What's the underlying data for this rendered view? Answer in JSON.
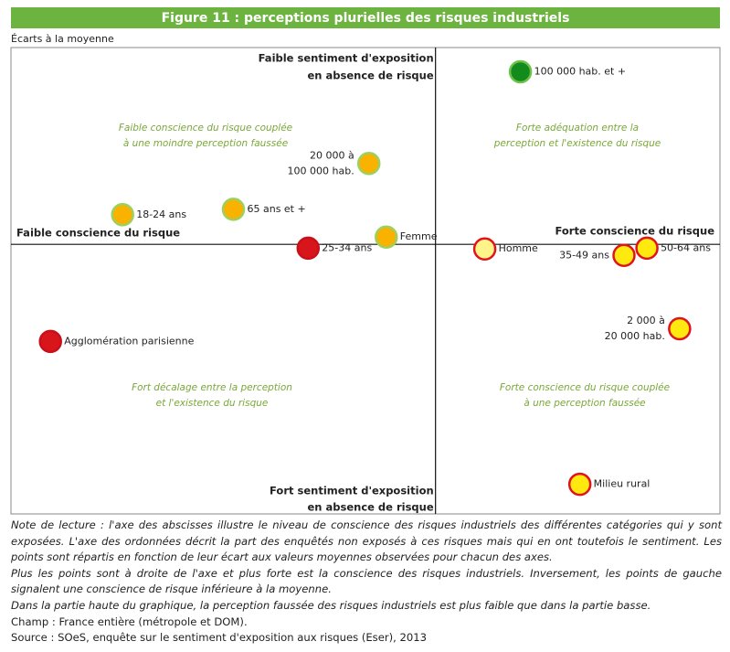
{
  "chart_data": {
    "type": "scatter",
    "title": "Figure 11 : perceptions plurielles des risques industriels",
    "subtitle": "Écarts à la moyenne",
    "y_label_top": [
      "Faible sentiment d'exposition",
      "en absence de risque"
    ],
    "y_label_bottom": [
      "Fort sentiment d'exposition",
      "en absence de risque"
    ],
    "x_label_left": "Faible conscience du risque",
    "x_label_right": "Forte conscience du risque",
    "annotations": [
      [
        "Faible conscience du risque couplée",
        "à une moindre perception faussée"
      ],
      [
        "Forte adéquation entre la",
        "perception et l'existence du risque"
      ],
      [
        "Fort décalage entre la perception",
        "et l'existence du risque"
      ],
      [
        "Forte conscience du risque couplée",
        "à une perception faussée"
      ]
    ],
    "xlim": [
      -100,
      67
    ],
    "ylim": [
      -100,
      73
    ],
    "labels": [
      [
        "100 000 hab. et +"
      ],
      [
        "20 000 à",
        "100 000 hab."
      ],
      [
        "18-24 ans"
      ],
      [
        "65 ans et +"
      ],
      [
        "Femme"
      ],
      [
        "25-34 ans"
      ],
      [
        "Homme"
      ],
      [
        "35-49 ans"
      ],
      [
        "50-64 ans"
      ],
      [
        "2 000 à",
        "20 000 hab."
      ],
      [
        "Agglomération parisienne"
      ],
      [
        "Milieu rural"
      ]
    ],
    "x": [
      20,
      -15.7,
      -73.7,
      -47.6,
      -11.6,
      -30,
      11.6,
      44.4,
      49.8,
      57.5,
      -90.7,
      34
    ],
    "y": [
      64,
      30,
      11,
      13,
      2.7,
      -1.4,
      -1.7,
      -4.1,
      -1.4,
      -31.3,
      -36,
      -89
    ],
    "colors": [
      "#138a1c",
      "#f9b200",
      "#f9b200",
      "#f9b200",
      "#f9b200",
      "#d8151b",
      "#fff48a",
      "#ffe90f",
      "#ffe90f",
      "#ffe90f",
      "#d8151b",
      "#ffe90f"
    ],
    "stroke_colors": [
      "#6cc24a",
      "#9cd060",
      "#9cd060",
      "#9cd060",
      "#9cd060",
      "#c8101a",
      "#e0141c",
      "#e0141c",
      "#e0141c",
      "#e0141c",
      "#c8101a",
      "#e0141c"
    ]
  },
  "notes": [
    "Note de lecture : l'axe des abscisses illustre le niveau de conscience des risques industriels des différentes catégories qui y sont exposées. L'axe des ordonnées décrit la part des enquêtés non exposés à ces risques mais qui en ont toutefois le sentiment. Les points sont répartis en fonction de leur écart aux valeurs moyennes observées pour chacun des axes.",
    "Plus les points sont à droite de l'axe et plus forte est la conscience des risques industriels. Inversement, les points de gauche signalent une conscience de risque inférieure à la moyenne.",
    "Dans la partie haute du graphique, la perception faussée des risques industriels est plus faible que dans la partie basse.",
    "Champ : France entière (métropole et DOM).",
    "Source : SOeS, enquête sur le sentiment d'exposition aux risques (Eser), 2013"
  ]
}
